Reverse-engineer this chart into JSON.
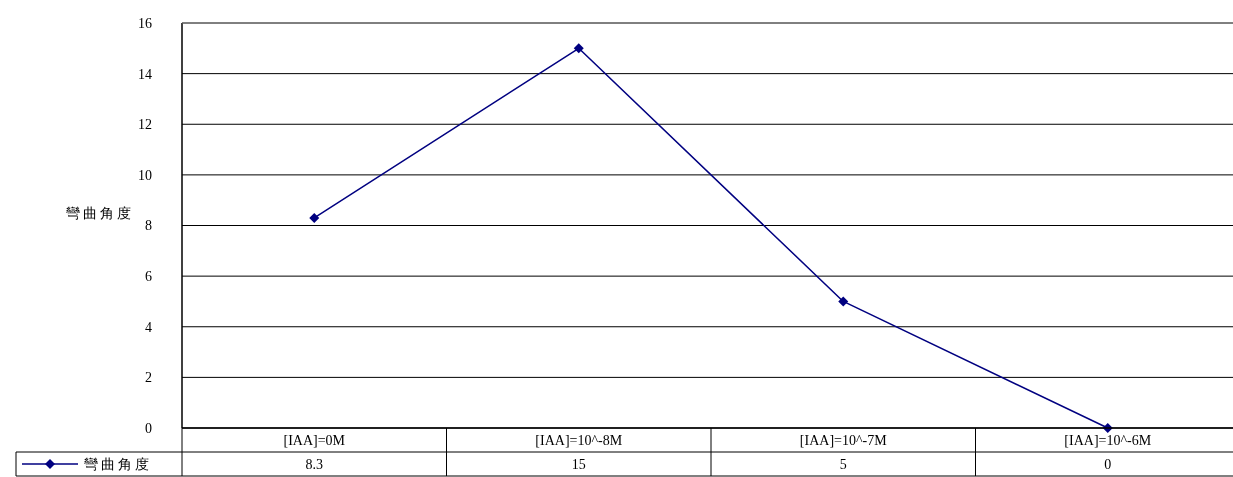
{
  "chart_data": {
    "type": "line",
    "ylabel": "彎曲角度",
    "categories": [
      "[IAA]=0M",
      "[IAA]=10^-8M",
      "[IAA]=10^-7M",
      "[IAA]=10^-6M"
    ],
    "series": [
      {
        "name": "彎曲角度",
        "color": "#000080",
        "values": [
          8.3,
          15,
          5,
          0
        ]
      }
    ],
    "ylim": [
      0,
      16
    ],
    "yticks": [
      0,
      2,
      4,
      6,
      8,
      10,
      12,
      14,
      16
    ],
    "grid": "y",
    "legend": "bottom",
    "marker": "diamond",
    "line_style": "solid",
    "data_labels": true
  }
}
